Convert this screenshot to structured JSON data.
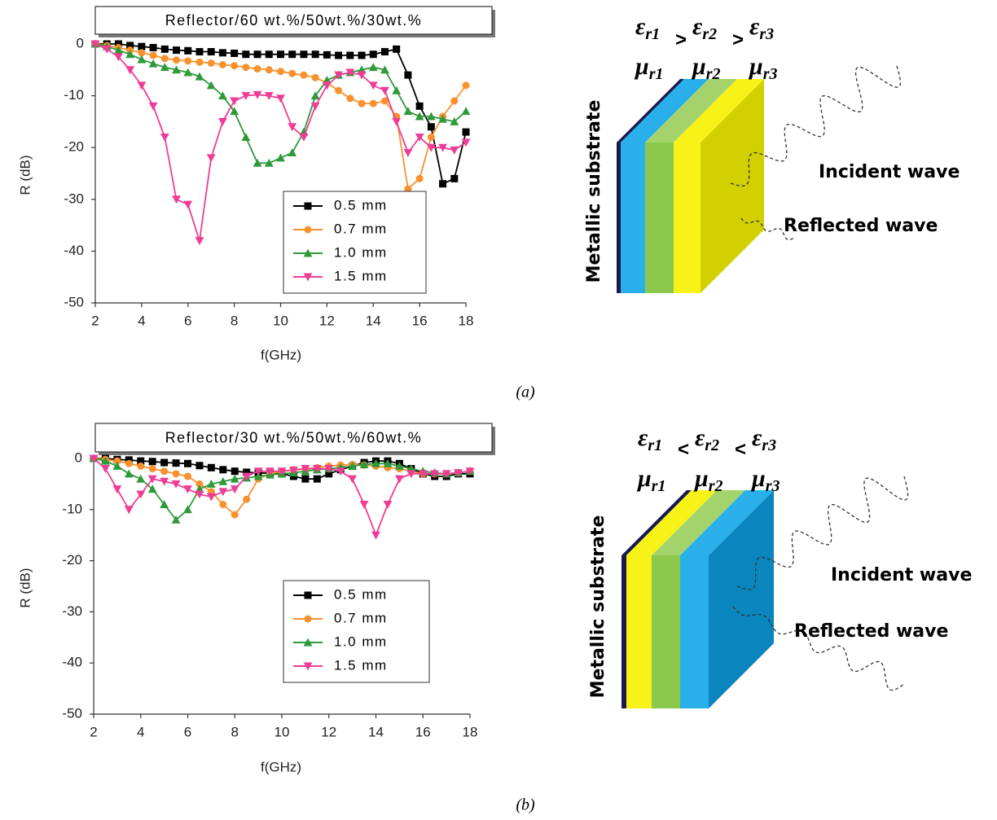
{
  "chart_data": [
    {
      "type": "line",
      "title": "Reflector/60 wt.%/50wt.%/30wt.%",
      "x_label": "f(GHz)",
      "y_label": "R (dB)",
      "x": [
        2,
        2.5,
        3,
        3.5,
        4,
        4.5,
        5,
        5.5,
        6,
        6.5,
        7,
        7.5,
        8,
        8.5,
        9,
        9.5,
        10,
        10.5,
        11,
        11.5,
        12,
        12.5,
        13,
        13.5,
        14,
        14.5,
        15,
        15.5,
        16,
        16.5,
        17,
        17.5,
        18
      ],
      "xlim": [
        2,
        18
      ],
      "xticks": [
        2,
        4,
        6,
        8,
        10,
        12,
        14,
        16,
        18
      ],
      "ylim": [
        -50,
        0
      ],
      "yticks": [
        0,
        -10,
        -20,
        -30,
        -40,
        -50
      ],
      "series": [
        {
          "name": "0.5 mm",
          "color": "#000000",
          "marker": "square",
          "values": [
            0,
            0,
            0,
            -0.3,
            -0.5,
            -0.7,
            -1,
            -1.2,
            -1.3,
            -1.5,
            -1.5,
            -1.7,
            -1.8,
            -2,
            -2,
            -2,
            -2,
            -2,
            -2,
            -2,
            -2.1,
            -2.2,
            -2.2,
            -2.2,
            -2,
            -1.5,
            -1,
            -6,
            -12,
            -16,
            -27,
            -26,
            -17
          ]
        },
        {
          "name": "0.7 mm",
          "color": "#f7922e",
          "marker": "circle",
          "values": [
            0,
            -0.3,
            -0.7,
            -1.2,
            -1.7,
            -2.2,
            -2.8,
            -3.1,
            -3.3,
            -3.5,
            -3.7,
            -4,
            -4.2,
            -4.5,
            -4.8,
            -5,
            -5.3,
            -5.7,
            -6,
            -6.5,
            -7.5,
            -9,
            -10.5,
            -11.5,
            -11.5,
            -11,
            -14,
            -28,
            -26,
            -18,
            -14,
            -11,
            -8
          ]
        },
        {
          "name": "1.0 mm",
          "color": "#2e9a3a",
          "marker": "triangle-up",
          "values": [
            0,
            -0.5,
            -1.2,
            -2,
            -3,
            -3.8,
            -4.5,
            -5,
            -5.5,
            -6.3,
            -8,
            -10,
            -13,
            -18,
            -23,
            -23,
            -22,
            -21,
            -17,
            -10,
            -7,
            -6,
            -5.5,
            -5,
            -4.5,
            -5,
            -9,
            -13,
            -14,
            -14,
            -14.5,
            -15,
            -13
          ]
        },
        {
          "name": "1.5 mm",
          "color": "#ee3d96",
          "marker": "triangle-down",
          "values": [
            0,
            -1,
            -2.5,
            -5,
            -8,
            -12,
            -18,
            -30,
            -31,
            -38,
            -22,
            -15,
            -11,
            -10,
            -9.8,
            -10,
            -10.5,
            -16,
            -18,
            -12,
            -8,
            -6,
            -5.5,
            -6,
            -8,
            -9,
            -15,
            -21,
            -18,
            -20,
            -20,
            -20.5,
            -19
          ]
        }
      ]
    },
    {
      "type": "line",
      "title": "Reflector/30 wt.%/50wt.%/60wt.%",
      "x_label": "f(GHz)",
      "y_label": "R (dB)",
      "x": [
        2,
        2.5,
        3,
        3.5,
        4,
        4.5,
        5,
        5.5,
        6,
        6.5,
        7,
        7.5,
        8,
        8.5,
        9,
        9.5,
        10,
        10.5,
        11,
        11.5,
        12,
        12.5,
        13,
        13.5,
        14,
        14.5,
        15,
        15.5,
        16,
        16.5,
        17,
        17.5,
        18
      ],
      "xlim": [
        2,
        18
      ],
      "xticks": [
        2,
        4,
        6,
        8,
        10,
        12,
        14,
        16,
        18
      ],
      "ylim": [
        -50,
        0
      ],
      "yticks": [
        0,
        -10,
        -20,
        -30,
        -40,
        -50
      ],
      "series": [
        {
          "name": "0.5 mm",
          "color": "#000000",
          "marker": "square",
          "values": [
            0,
            0,
            -0.2,
            -0.3,
            -0.5,
            -0.6,
            -0.8,
            -0.9,
            -1,
            -1.4,
            -1.8,
            -2.2,
            -2.5,
            -2.7,
            -2.8,
            -2.9,
            -3,
            -3.5,
            -4,
            -4,
            -3,
            -2.2,
            -1.5,
            -0.8,
            -0.5,
            -0.5,
            -1,
            -2,
            -3,
            -3.5,
            -3.5,
            -3,
            -3
          ]
        },
        {
          "name": "0.7 mm",
          "color": "#f7922e",
          "marker": "circle",
          "values": [
            0,
            -0.2,
            -0.5,
            -1,
            -1.5,
            -2,
            -2.5,
            -3,
            -3.5,
            -5,
            -6.5,
            -9,
            -11,
            -8,
            -4,
            -3,
            -2.5,
            -2.2,
            -2,
            -1.8,
            -1.5,
            -1.3,
            -1.2,
            -1.3,
            -1.5,
            -1.8,
            -2,
            -2.5,
            -3,
            -3,
            -3,
            -2.8,
            -2.5
          ]
        },
        {
          "name": "1.0 mm",
          "color": "#2e9a3a",
          "marker": "triangle-up",
          "values": [
            0,
            -0.5,
            -1.5,
            -3,
            -4,
            -6,
            -9,
            -12,
            -10,
            -6,
            -5,
            -4.5,
            -4,
            -3.8,
            -3.5,
            -3.2,
            -3,
            -2.8,
            -2.5,
            -2.2,
            -2,
            -1.8,
            -1.5,
            -1.2,
            -1,
            -1,
            -1.5,
            -2,
            -2.5,
            -2.8,
            -3,
            -2.8,
            -2.5
          ]
        },
        {
          "name": "1.5 mm",
          "color": "#ee3d96",
          "marker": "triangle-down",
          "values": [
            0,
            -2,
            -6,
            -10,
            -7,
            -4,
            -4.5,
            -5,
            -6,
            -7,
            -7.5,
            -6.5,
            -6,
            -3.5,
            -2.5,
            -2.5,
            -2.5,
            -2.3,
            -2,
            -2,
            -2,
            -2.5,
            -4,
            -9,
            -15,
            -9,
            -4,
            -3,
            -3,
            -3,
            -3,
            -2.8,
            -2.5
          ]
        }
      ]
    }
  ],
  "diagrams": [
    {
      "epsilon": [
        {
          "base": "ε",
          "sub": "r1"
        },
        {
          "base": "ε",
          "sub": "r2"
        },
        {
          "base": "ε",
          "sub": "r3"
        }
      ],
      "relations": [
        ">",
        ">"
      ],
      "mu": [
        {
          "base": "μ",
          "sub": "r1"
        },
        {
          "base": "μ",
          "sub": "r2"
        },
        {
          "base": "μ",
          "sub": "r3"
        }
      ],
      "substrate_label": "Metallic substrate",
      "incident_label": "Incident wave",
      "reflected_label": "Reflected wave",
      "caption": "(a)"
    },
    {
      "epsilon": [
        {
          "base": "ε",
          "sub": "r1"
        },
        {
          "base": "ε",
          "sub": "r2"
        },
        {
          "base": "ε",
          "sub": "r3"
        }
      ],
      "relations": [
        "<",
        "<"
      ],
      "mu": [
        {
          "base": "μ",
          "sub": "r1"
        },
        {
          "base": "μ",
          "sub": "r2"
        },
        {
          "base": "μ",
          "sub": "r3"
        }
      ],
      "substrate_label": "Metallic substrate",
      "incident_label": "Incident wave",
      "reflected_label": "Reflected wave",
      "caption": "(b)"
    }
  ]
}
